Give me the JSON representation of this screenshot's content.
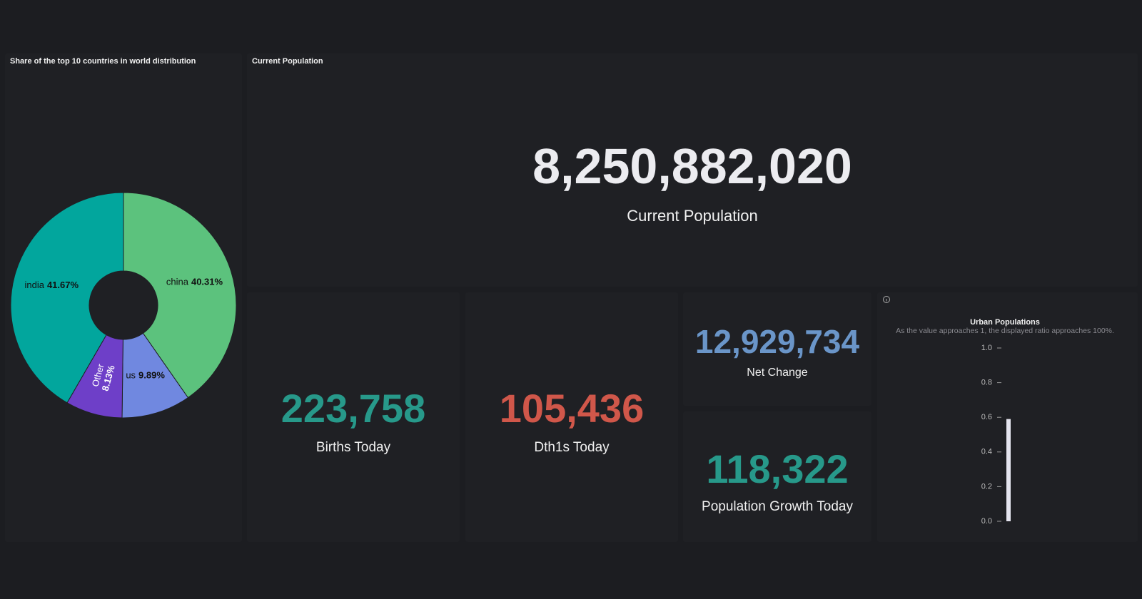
{
  "pie_panel": {
    "title": "Share of the top 10 countries in world distribution",
    "chart_data": {
      "type": "pie",
      "categories": [
        "china",
        "us",
        "Other",
        "india"
      ],
      "values": [
        40.31,
        9.89,
        8.13,
        41.67
      ],
      "value_labels": [
        "40.31%",
        "9.89%",
        "8.13%",
        "41.67%"
      ],
      "colors": [
        "#5cc27d",
        "#7088e0",
        "#6e3fc8",
        "#02a69d"
      ]
    }
  },
  "current_population": {
    "title": "Current Population",
    "value": "8,250,882,020",
    "label": "Current Population"
  },
  "births": {
    "value": "223,758",
    "label": "Births Today"
  },
  "deaths": {
    "value": "105,436",
    "label": "Dth1s Today"
  },
  "net_change": {
    "value": "12,929,734",
    "label": "Net Change"
  },
  "growth": {
    "value": "118,322",
    "label": "Population Growth Today"
  },
  "urban_panel": {
    "chart_data": {
      "type": "bar",
      "title": "Urban Populations",
      "subtitle": "As the value approaches 1, the displayed ratio approaches 100%.",
      "values": [
        0.59
      ],
      "color": "#e4e4ee",
      "ylim": [
        0,
        1
      ],
      "yticks": [
        {
          "value": 0,
          "label": "0.0"
        },
        0.2,
        0.4,
        0.6,
        0.8,
        {
          "value": 1,
          "label": "1.0"
        }
      ]
    }
  }
}
